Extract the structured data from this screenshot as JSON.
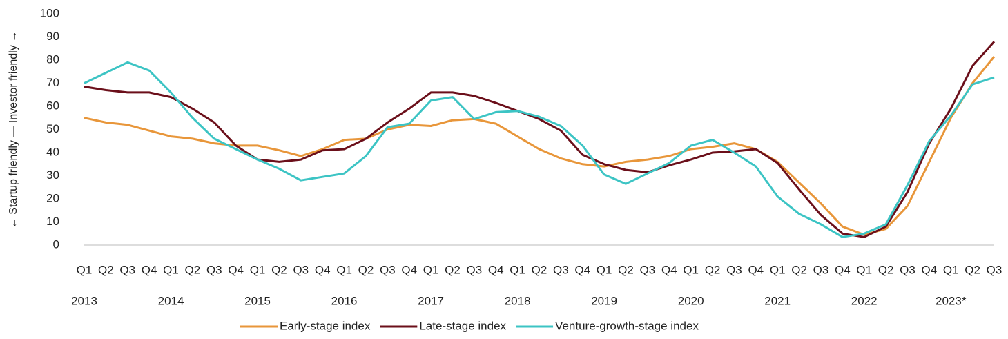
{
  "chart_data": {
    "type": "line",
    "ylabel": "← Startup friendly — Investor friendly →",
    "categories": [
      "Q1",
      "Q2",
      "Q3",
      "Q4",
      "Q1",
      "Q2",
      "Q3",
      "Q4",
      "Q1",
      "Q2",
      "Q3",
      "Q4",
      "Q1",
      "Q2",
      "Q3",
      "Q4",
      "Q1",
      "Q2",
      "Q3",
      "Q4",
      "Q1",
      "Q2",
      "Q3",
      "Q4",
      "Q1",
      "Q2",
      "Q3",
      "Q4",
      "Q1",
      "Q2",
      "Q3",
      "Q4",
      "Q1",
      "Q2",
      "Q3",
      "Q4",
      "Q1",
      "Q2",
      "Q3",
      "Q4",
      "Q1",
      "Q2",
      "Q3"
    ],
    "years": [
      "2013",
      "2014",
      "2015",
      "2016",
      "2017",
      "2018",
      "2019",
      "2020",
      "2021",
      "2022",
      "2023*"
    ],
    "series": [
      {
        "name": "Early-stage index",
        "color": "#e8963a",
        "values": [
          55,
          53,
          52,
          49.5,
          47,
          46,
          44,
          43,
          43,
          41,
          38.5,
          41.5,
          45.5,
          46,
          50,
          52,
          51.5,
          54,
          54.5,
          52.5,
          47,
          41.5,
          37.5,
          35,
          34,
          36,
          37,
          38.5,
          41.5,
          42.5,
          44,
          41.5,
          36,
          27,
          18,
          8,
          4.5,
          7,
          17,
          36,
          55,
          70,
          81.5
        ]
      },
      {
        "name": "Late-stage index",
        "color": "#6b0f1a",
        "values": [
          68.5,
          67,
          66,
          66,
          64,
          59,
          53,
          43,
          37,
          36,
          37,
          41,
          41.5,
          46,
          53,
          59,
          66,
          66,
          64.5,
          61.5,
          58,
          54.5,
          49.5,
          39,
          35,
          32.5,
          31.5,
          34.5,
          37,
          40,
          40.5,
          41.5,
          35.5,
          24,
          13,
          5,
          3.5,
          8,
          23,
          44,
          59,
          77.5,
          88
        ]
      },
      {
        "name": "Venture-growth-stage index",
        "color": "#3cc4c4",
        "values": [
          70,
          74.5,
          79,
          75.5,
          66,
          55,
          46,
          41.5,
          37,
          33,
          28,
          29.5,
          31,
          38.5,
          51,
          52.5,
          62.5,
          64,
          54.5,
          57.5,
          58,
          55.5,
          51.5,
          43,
          30.5,
          26.5,
          31,
          35.5,
          43,
          45.5,
          40,
          34,
          21,
          13.5,
          9,
          3.5,
          5,
          9,
          26,
          45,
          56,
          69.5,
          72.5
        ]
      }
    ],
    "ylim": [
      0,
      100
    ],
    "yticks": [
      0,
      10,
      20,
      30,
      40,
      50,
      60,
      70,
      80,
      90,
      100
    ],
    "grid": false
  }
}
